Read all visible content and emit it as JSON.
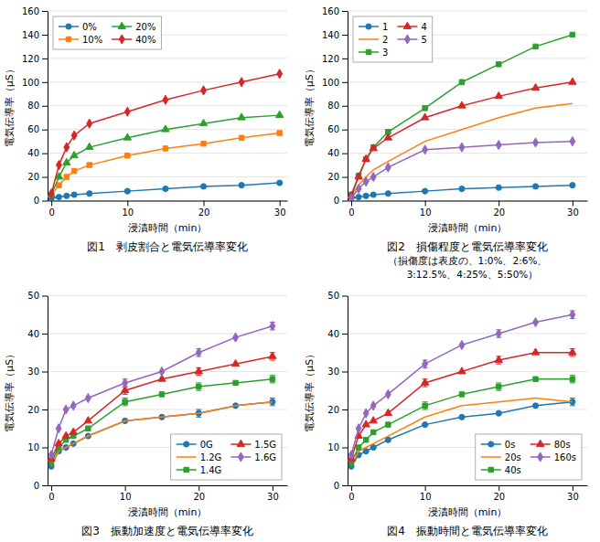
{
  "chart_data": [
    {
      "type": "line",
      "title": "図1　剥皮割合と電気伝導率変化",
      "x_label": "浸漬時間（min）",
      "y_label": "電気伝導率（μS）",
      "x": [
        0,
        1,
        2,
        3,
        5,
        10,
        15,
        20,
        25,
        30
      ],
      "xlim": [
        -0.5,
        31
      ],
      "xticks": [
        0,
        10,
        20,
        30
      ],
      "ylim": [
        0,
        160
      ],
      "yticks": [
        0,
        20,
        40,
        60,
        80,
        100,
        120,
        140,
        160
      ],
      "grid": true,
      "legend": "upper left",
      "series": [
        {
          "name": "0%",
          "marker": "circle",
          "values": [
            2,
            3,
            4,
            5,
            6,
            8,
            10,
            12,
            13,
            15
          ]
        },
        {
          "name": "10%",
          "marker": "square",
          "values": [
            5,
            13,
            20,
            25,
            30,
            38,
            44,
            48,
            53,
            57
          ]
        },
        {
          "name": "20%",
          "marker": "triangle",
          "values": [
            5,
            20,
            32,
            38,
            45,
            53,
            60,
            65,
            70,
            72
          ]
        },
        {
          "name": "40%",
          "marker": "diamond",
          "values": [
            6,
            30,
            45,
            55,
            65,
            75,
            85,
            93,
            100,
            107
          ]
        }
      ]
    },
    {
      "type": "line",
      "title": "図2　損傷程度と電気伝導率変化",
      "subtitle": [
        "（損傷度は表皮の、1:0%、2:6%、",
        "　3:12.5%、4:25%、5:50%）"
      ],
      "x_label": "浸漬時間（min）",
      "y_label": "電気伝導率（μS）",
      "x": [
        0,
        1,
        2,
        3,
        5,
        10,
        15,
        20,
        25,
        30
      ],
      "xlim": [
        -0.5,
        32
      ],
      "xticks": [
        0,
        10,
        20,
        30
      ],
      "ylim": [
        0,
        160
      ],
      "yticks": [
        0,
        20,
        40,
        60,
        80,
        100,
        120,
        140,
        160
      ],
      "grid": true,
      "legend": "upper left",
      "series": [
        {
          "name": "1",
          "marker": "circle",
          "values": [
            2,
            3,
            4,
            5,
            6,
            8,
            10,
            11,
            12,
            13
          ]
        },
        {
          "name": "2",
          "marker": "none",
          "values": [
            4,
            13,
            20,
            26,
            33,
            50,
            60,
            70,
            78,
            82
          ]
        },
        {
          "name": "3",
          "marker": "square",
          "values": [
            5,
            21,
            35,
            45,
            58,
            78,
            100,
            115,
            130,
            140
          ]
        },
        {
          "name": "4",
          "marker": "triangle",
          "values": [
            4,
            20,
            35,
            44,
            53,
            70,
            80,
            88,
            95,
            100
          ]
        },
        {
          "name": "5",
          "marker": "diamond",
          "values": [
            2,
            10,
            16,
            20,
            28,
            43,
            45,
            47,
            49,
            50
          ]
        }
      ]
    },
    {
      "type": "line",
      "title": "図3　振動加速度と電気伝導率変化",
      "x_label": "浸漬時間（min）",
      "y_label": "電気伝導率（μS）",
      "x": [
        0,
        1,
        2,
        3,
        5,
        10,
        15,
        20,
        25,
        30
      ],
      "xlim": [
        -0.5,
        32
      ],
      "xticks": [
        0,
        10,
        20,
        30
      ],
      "ylim": [
        0,
        50
      ],
      "yticks": [
        0,
        10,
        20,
        30,
        40,
        50
      ],
      "grid": true,
      "legend": "lower right",
      "series": [
        {
          "name": "0G",
          "marker": "circle",
          "values": [
            5,
            9,
            10,
            11,
            13,
            17,
            18,
            19,
            21,
            22
          ],
          "errors": [
            0,
            0,
            0,
            0,
            0,
            0,
            0,
            1,
            0,
            1
          ]
        },
        {
          "name": "1.2G",
          "marker": "none",
          "values": [
            5,
            9,
            10,
            11,
            13,
            17,
            18,
            19,
            21,
            22
          ]
        },
        {
          "name": "1.4G",
          "marker": "square",
          "values": [
            6,
            10,
            12,
            13,
            15,
            22,
            24,
            26,
            27,
            28
          ],
          "errors": [
            0,
            0,
            0,
            0,
            0,
            1,
            0,
            1,
            0,
            1
          ]
        },
        {
          "name": "1.5G",
          "marker": "triangle",
          "values": [
            7,
            11,
            13,
            14,
            17,
            25,
            28,
            30,
            32,
            34
          ],
          "errors": [
            0,
            0,
            0,
            0,
            0,
            1,
            0,
            1,
            0,
            1
          ]
        },
        {
          "name": "1.6G",
          "marker": "diamond",
          "values": [
            8,
            15,
            20,
            21,
            23,
            27,
            30,
            35,
            39,
            42
          ],
          "errors": [
            0,
            0,
            0,
            0,
            0,
            1,
            0,
            1,
            0,
            1
          ]
        }
      ]
    },
    {
      "type": "line",
      "title": "図4　振動時間と電気伝導率変化",
      "x_label": "浸漬時間（min）",
      "y_label": "電気伝導率（μS）",
      "x": [
        0,
        1,
        2,
        3,
        5,
        10,
        15,
        20,
        25,
        30
      ],
      "xlim": [
        -0.5,
        32
      ],
      "xticks": [
        0,
        10,
        20,
        30
      ],
      "ylim": [
        0,
        50
      ],
      "yticks": [
        0,
        10,
        20,
        30,
        40,
        50
      ],
      "grid": true,
      "legend": "lower right",
      "series": [
        {
          "name": "0s",
          "marker": "circle",
          "values": [
            5,
            8,
            9,
            10,
            12,
            16,
            18,
            19,
            21,
            22
          ],
          "errors": [
            0,
            0,
            0,
            0,
            0,
            0,
            0,
            0,
            0,
            1
          ]
        },
        {
          "name": "20s",
          "marker": "none",
          "values": [
            5,
            9,
            10,
            11,
            13,
            18,
            21,
            22,
            23,
            22
          ]
        },
        {
          "name": "40s",
          "marker": "square",
          "values": [
            6,
            10,
            12,
            14,
            16,
            21,
            24,
            26,
            28,
            28
          ],
          "errors": [
            0,
            0,
            0,
            0,
            0,
            1,
            0,
            1,
            0,
            1
          ]
        },
        {
          "name": "80s",
          "marker": "triangle",
          "values": [
            7,
            13,
            16,
            17,
            19,
            27,
            30,
            33,
            35,
            35
          ],
          "errors": [
            0,
            0,
            0,
            0,
            0,
            1,
            0,
            1,
            0,
            1
          ]
        },
        {
          "name": "160s",
          "marker": "diamond",
          "values": [
            8,
            15,
            19,
            21,
            24,
            32,
            37,
            40,
            43,
            45
          ],
          "errors": [
            0,
            0,
            0,
            0,
            0,
            1,
            0,
            1,
            0,
            1
          ]
        }
      ]
    }
  ]
}
